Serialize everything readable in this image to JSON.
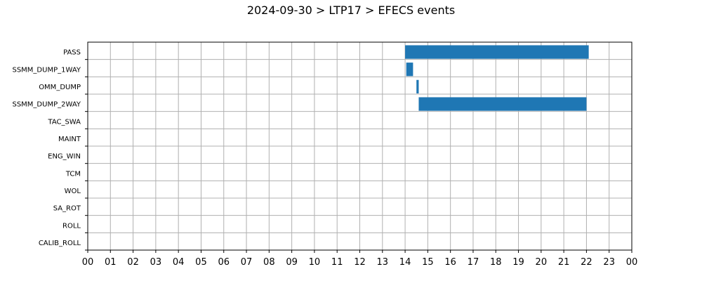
{
  "chart_data": {
    "type": "bar",
    "orientation": "horizontal",
    "title": "2024-09-30 > LTP17 > EFECS events",
    "xlabel": "",
    "ylabel": "",
    "grid": true,
    "xlim": [
      0,
      24
    ],
    "x_ticks": [
      "00",
      "01",
      "02",
      "03",
      "04",
      "05",
      "06",
      "07",
      "08",
      "09",
      "10",
      "11",
      "12",
      "13",
      "14",
      "15",
      "16",
      "17",
      "18",
      "19",
      "20",
      "21",
      "22",
      "23",
      "00"
    ],
    "categories": [
      "PASS",
      "SSMM_DUMP_1WAY",
      "OMM_DUMP",
      "SSMM_DUMP_2WAY",
      "TAC_SWA",
      "MAINT",
      "ENG_WIN",
      "TCM",
      "WOL",
      "SA_ROT",
      "ROLL",
      "CALIB_ROLL"
    ],
    "bar_color": "#1f77b4",
    "events": [
      {
        "category": "PASS",
        "start": 14.0,
        "end": 22.1
      },
      {
        "category": "SSMM_DUMP_1WAY",
        "start": 14.05,
        "end": 14.35
      },
      {
        "category": "OMM_DUMP",
        "start": 14.5,
        "end": 14.6
      },
      {
        "category": "SSMM_DUMP_2WAY",
        "start": 14.6,
        "end": 22.0
      }
    ]
  }
}
